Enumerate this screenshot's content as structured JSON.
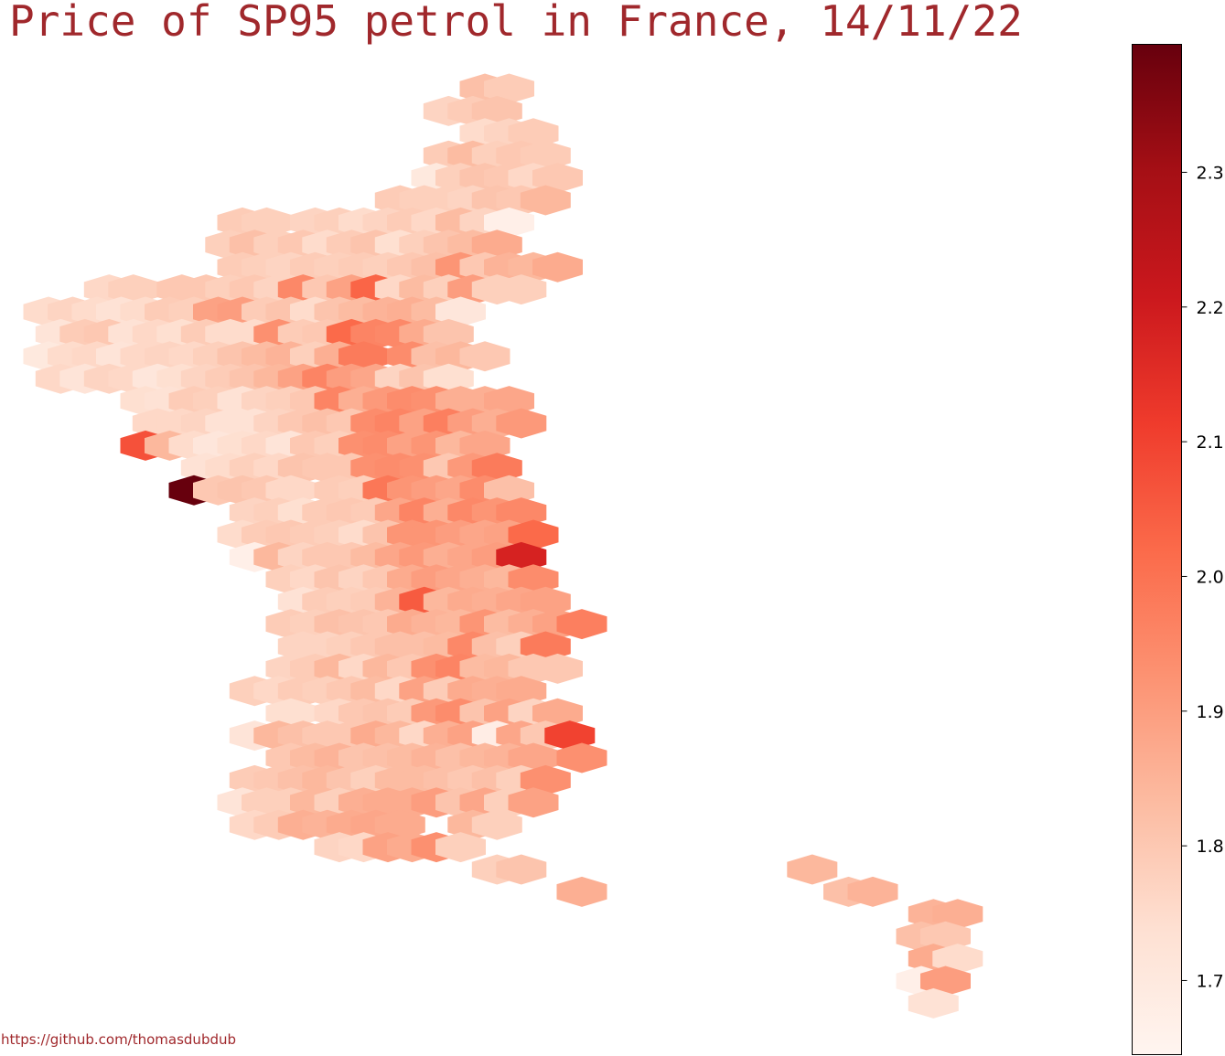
{
  "title": "Price of SP95 petrol in France, 14/11/22",
  "credit": "https://github.com/thomasdubdub",
  "colors": {
    "title": "#a0282c",
    "colormap": "Reds",
    "low": "#fff5f0",
    "high": "#67000d"
  },
  "chart_data": {
    "type": "heatmap",
    "subtype": "hexbin-map",
    "title": "Price of SP95 petrol in France, 14/11/22",
    "colorbar": {
      "range": [
        1.645,
        2.395
      ],
      "ticks": [
        1.7,
        1.8,
        1.9,
        2.0,
        2.1,
        2.2,
        2.3
      ],
      "tick_labels": [
        "1.7",
        "1.8",
        "1.9",
        "2.0",
        "2.1",
        "2.2",
        "2.3"
      ],
      "colormap": "Reds"
    },
    "grid": false,
    "rows": [
      {
        "start": 19,
        "values": [
          1.82,
          1.79
        ]
      },
      {
        "start": 18,
        "values": [
          1.77,
          1.79,
          1.81
        ]
      },
      {
        "start": 19,
        "values": [
          1.75,
          1.77,
          1.79
        ]
      },
      {
        "start": 18,
        "values": [
          1.79,
          1.83,
          1.78,
          1.8,
          1.79
        ]
      },
      {
        "start": 17,
        "values": [
          1.7,
          1.78,
          1.81,
          1.8,
          1.76,
          1.8
        ]
      },
      {
        "start": 16,
        "values": [
          1.79,
          1.78,
          1.78,
          1.77,
          1.81,
          1.8,
          1.84
        ]
      },
      {
        "start": 9,
        "values": [
          1.79,
          1.78,
          null,
          1.77,
          1.78,
          1.75,
          1.77,
          1.79,
          1.76,
          1.83,
          1.77,
          1.67
        ]
      },
      {
        "start": 9,
        "values": [
          1.78,
          1.82,
          1.78,
          1.8,
          1.75,
          1.79,
          1.81,
          1.74,
          1.78,
          1.81,
          1.83,
          1.87
        ]
      },
      {
        "start": 9,
        "values": [
          1.79,
          1.78,
          1.77,
          1.79,
          1.78,
          1.79,
          1.78,
          1.8,
          1.82,
          1.92,
          1.8,
          1.85,
          1.84,
          1.87
        ]
      },
      {
        "start": 4,
        "values": [
          1.76,
          1.78,
          null,
          1.8,
          1.8,
          1.78,
          1.8,
          1.77,
          1.95,
          1.8,
          1.89,
          2.03,
          1.76,
          1.83,
          1.78,
          1.9,
          1.78,
          1.78
        ]
      },
      {
        "start": 1,
        "values": [
          1.75,
          1.77,
          1.75,
          1.73,
          1.75,
          1.79,
          1.78,
          1.89,
          1.9,
          1.79,
          1.81,
          1.75,
          1.81,
          1.83,
          1.85,
          1.86,
          1.83,
          1.71
        ]
      },
      {
        "start": 2,
        "values": [
          1.72,
          1.79,
          1.8,
          1.73,
          1.76,
          1.74,
          1.79,
          1.75,
          1.75,
          1.93,
          1.79,
          1.8,
          2.02,
          1.96,
          1.95,
          1.87,
          1.81
        ]
      },
      {
        "start": 1,
        "values": [
          1.7,
          1.75,
          1.76,
          1.72,
          1.76,
          1.77,
          1.76,
          1.78,
          1.81,
          1.83,
          1.85,
          1.78,
          1.86,
          1.98,
          null,
          1.94,
          1.82,
          1.84,
          1.8
        ]
      },
      {
        "start": 2,
        "values": [
          1.76,
          1.72,
          1.77,
          1.76,
          1.71,
          1.74,
          1.77,
          1.79,
          1.81,
          1.84,
          1.89,
          1.96,
          1.9,
          1.88,
          1.77,
          1.81,
          1.74
        ]
      },
      {
        "start": 5,
        "values": [
          1.74,
          1.73,
          1.79,
          1.78,
          1.73,
          1.77,
          1.78,
          1.8,
          1.96,
          1.86,
          1.91,
          1.94,
          1.93,
          1.86,
          1.86,
          1.88
        ]
      },
      {
        "start": 6,
        "values": [
          1.76,
          1.76,
          1.77,
          1.73,
          1.73,
          1.77,
          1.8,
          1.82,
          1.8,
          1.94,
          1.96,
          1.89,
          1.97,
          1.9,
          1.86,
          1.91
        ]
      },
      {
        "start": 5,
        "values": [
          2.07,
          1.84,
          1.75,
          1.71,
          1.74,
          1.76,
          1.72,
          1.8,
          1.78,
          1.93,
          1.94,
          1.89,
          1.92,
          1.84,
          1.88
        ]
      },
      {
        "start": 8,
        "values": [
          1.73,
          1.75,
          1.78,
          1.76,
          1.81,
          1.8,
          1.8,
          1.93,
          1.94,
          1.93,
          1.8,
          1.91,
          1.98
        ]
      },
      {
        "start": 7,
        "values": [
          2.4,
          1.8,
          1.81,
          1.8,
          1.76,
          null,
          1.79,
          1.78,
          1.99,
          1.92,
          1.9,
          1.88,
          1.94,
          1.82
        ]
      },
      {
        "start": 10,
        "values": [
          1.77,
          1.78,
          1.74,
          1.79,
          1.8,
          1.79,
          1.88,
          1.96,
          1.86,
          1.95,
          1.92,
          1.95
        ]
      },
      {
        "start": 9,
        "values": [
          1.75,
          1.79,
          1.8,
          1.79,
          1.78,
          1.75,
          1.81,
          1.92,
          1.92,
          1.9,
          1.88,
          1.89,
          2.02
        ]
      },
      {
        "start": 10,
        "values": [
          1.67,
          1.84,
          1.77,
          1.8,
          1.8,
          1.83,
          1.88,
          1.91,
          1.86,
          1.88,
          1.9,
          2.18
        ]
      },
      {
        "start": 11,
        "values": [
          1.78,
          1.76,
          1.81,
          1.77,
          1.8,
          1.87,
          1.9,
          1.88,
          1.86,
          1.84,
          1.94
        ]
      },
      {
        "start": 12,
        "values": [
          1.73,
          1.79,
          1.78,
          1.79,
          1.85,
          2.05,
          1.84,
          1.87,
          1.86,
          1.88,
          1.89
        ]
      },
      {
        "start": 11,
        "values": [
          1.79,
          1.78,
          1.82,
          1.81,
          1.8,
          1.87,
          1.85,
          1.84,
          1.92,
          1.83,
          1.86,
          1.89,
          1.97
        ]
      },
      {
        "start": 12,
        "values": [
          1.77,
          1.77,
          1.78,
          1.8,
          1.82,
          1.82,
          1.83,
          1.95,
          1.82,
          1.78,
          1.98
        ]
      },
      {
        "start": 11,
        "values": [
          1.77,
          1.79,
          1.84,
          1.76,
          1.84,
          1.8,
          1.93,
          1.96,
          1.83,
          1.84,
          1.8,
          1.8
        ]
      },
      {
        "start": 10,
        "values": [
          1.78,
          1.76,
          1.79,
          1.78,
          1.8,
          1.83,
          1.76,
          1.89,
          1.79,
          1.87,
          1.86,
          1.87
        ]
      },
      {
        "start": 11,
        "values": [
          1.74,
          null,
          1.76,
          1.8,
          1.81,
          1.79,
          1.91,
          1.94,
          1.81,
          1.89,
          1.77,
          1.87
        ]
      },
      {
        "start": 10,
        "values": [
          1.72,
          1.84,
          1.82,
          1.8,
          1.8,
          1.87,
          1.84,
          1.76,
          1.86,
          1.89,
          1.68,
          1.88,
          1.8,
          2.1
        ]
      },
      {
        "start": 11,
        "values": [
          1.8,
          1.83,
          1.85,
          1.81,
          1.82,
          1.83,
          1.85,
          1.82,
          1.84,
          1.85,
          1.88,
          null,
          1.93
        ]
      },
      {
        "start": 10,
        "values": [
          1.79,
          1.8,
          1.82,
          1.84,
          1.81,
          1.78,
          1.83,
          1.83,
          1.82,
          1.8,
          1.82,
          1.78,
          1.93
        ]
      },
      {
        "start": 9,
        "values": [
          1.72,
          1.78,
          1.78,
          1.84,
          1.78,
          1.86,
          1.87,
          1.87,
          1.9,
          1.81,
          1.88,
          1.78,
          1.89
        ]
      },
      {
        "start": 10,
        "values": [
          1.76,
          1.79,
          1.86,
          1.85,
          1.87,
          1.88,
          1.87,
          null,
          null,
          1.84,
          1.78
        ]
      },
      {
        "start": 13,
        "values": [
          1.77,
          1.76,
          1.89,
          1.87,
          1.93,
          1.78
        ]
      },
      {
        "start": 20,
        "values": [
          1.78,
          1.81,
          null,
          null,
          null,
          null,
          null,
          null,
          null,
          null,
          null,
          null,
          null,
          1.84
        ]
      },
      {
        "start": 23,
        "values": [
          1.86,
          null,
          null,
          null,
          null,
          null,
          null,
          null,
          null,
          null,
          null,
          1.82,
          1.85
        ]
      },
      {
        "start": 38,
        "values": [
          1.85,
          1.86
        ]
      },
      {
        "start": 37,
        "values": [
          1.82,
          1.8
        ]
      },
      {
        "start": 38,
        "values": [
          1.87,
          1.75
        ]
      },
      {
        "start": 37,
        "values": [
          1.67,
          1.9
        ]
      },
      {
        "start": 38,
        "values": [
          1.73
        ]
      }
    ]
  }
}
